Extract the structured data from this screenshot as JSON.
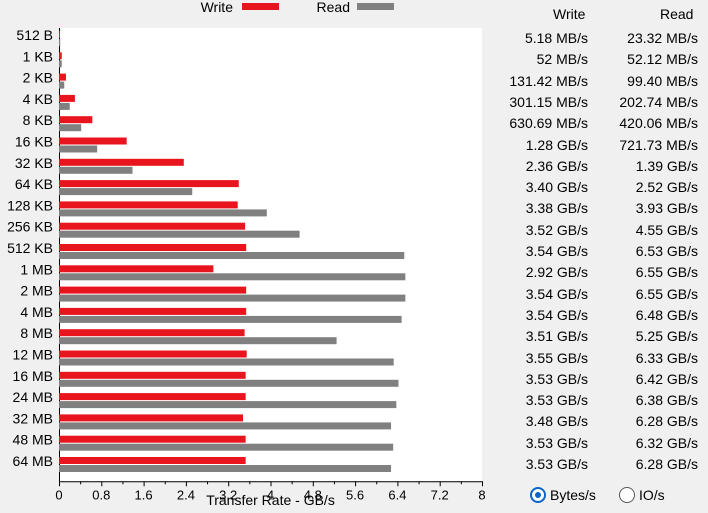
{
  "chart_data": {
    "type": "bar",
    "orientation": "horizontal",
    "categories": [
      "512 B",
      "1 KB",
      "2 KB",
      "4 KB",
      "8 KB",
      "16 KB",
      "32 KB",
      "64 KB",
      "128 KB",
      "256 KB",
      "512 KB",
      "1 MB",
      "2 MB",
      "4 MB",
      "8 MB",
      "12 MB",
      "16 MB",
      "24 MB",
      "32 MB",
      "48 MB",
      "64 MB"
    ],
    "series": [
      {
        "name": "Write",
        "color": "#e8141e",
        "values": [
          0.00518,
          0.052,
          0.13142,
          0.30115,
          0.63069,
          1.28,
          2.36,
          3.4,
          3.38,
          3.52,
          3.54,
          2.92,
          3.54,
          3.54,
          3.51,
          3.55,
          3.53,
          3.53,
          3.48,
          3.53,
          3.53
        ]
      },
      {
        "name": "Read",
        "color": "#808080",
        "values": [
          0.02332,
          0.05212,
          0.0994,
          0.20274,
          0.42006,
          0.72173,
          1.39,
          2.52,
          3.93,
          4.55,
          6.53,
          6.55,
          6.55,
          6.48,
          5.25,
          6.33,
          6.42,
          6.38,
          6.28,
          6.32,
          6.28
        ]
      }
    ],
    "xlabel": "Transfer Rate - GB/s",
    "xlim": [
      0,
      8
    ],
    "xticks": [
      "0",
      "0.8",
      "1.6",
      "2.4",
      "3.2",
      "4",
      "4.8",
      "5.6",
      "6.4",
      "7.2",
      "8"
    ],
    "legend": "top",
    "grid": false
  },
  "table": {
    "write_header": "Write",
    "read_header": "Read",
    "rows": [
      {
        "write": "5.18 MB/s",
        "read": "23.32 MB/s"
      },
      {
        "write": "52 MB/s",
        "read": "52.12 MB/s"
      },
      {
        "write": "131.42 MB/s",
        "read": "99.40 MB/s"
      },
      {
        "write": "301.15 MB/s",
        "read": "202.74 MB/s"
      },
      {
        "write": "630.69 MB/s",
        "read": "420.06 MB/s"
      },
      {
        "write": "1.28 GB/s",
        "read": "721.73 MB/s"
      },
      {
        "write": "2.36 GB/s",
        "read": "1.39 GB/s"
      },
      {
        "write": "3.40 GB/s",
        "read": "2.52 GB/s"
      },
      {
        "write": "3.38 GB/s",
        "read": "3.93 GB/s"
      },
      {
        "write": "3.52 GB/s",
        "read": "4.55 GB/s"
      },
      {
        "write": "3.54 GB/s",
        "read": "6.53 GB/s"
      },
      {
        "write": "2.92 GB/s",
        "read": "6.55 GB/s"
      },
      {
        "write": "3.54 GB/s",
        "read": "6.55 GB/s"
      },
      {
        "write": "3.54 GB/s",
        "read": "6.48 GB/s"
      },
      {
        "write": "3.51 GB/s",
        "read": "5.25 GB/s"
      },
      {
        "write": "3.55 GB/s",
        "read": "6.33 GB/s"
      },
      {
        "write": "3.53 GB/s",
        "read": "6.42 GB/s"
      },
      {
        "write": "3.53 GB/s",
        "read": "6.38 GB/s"
      },
      {
        "write": "3.48 GB/s",
        "read": "6.28 GB/s"
      },
      {
        "write": "3.53 GB/s",
        "read": "6.32 GB/s"
      },
      {
        "write": "3.53 GB/s",
        "read": "6.28 GB/s"
      }
    ]
  },
  "units": {
    "bytes_label": "Bytes/s",
    "io_label": "IO/s",
    "selected": "Bytes/s"
  }
}
